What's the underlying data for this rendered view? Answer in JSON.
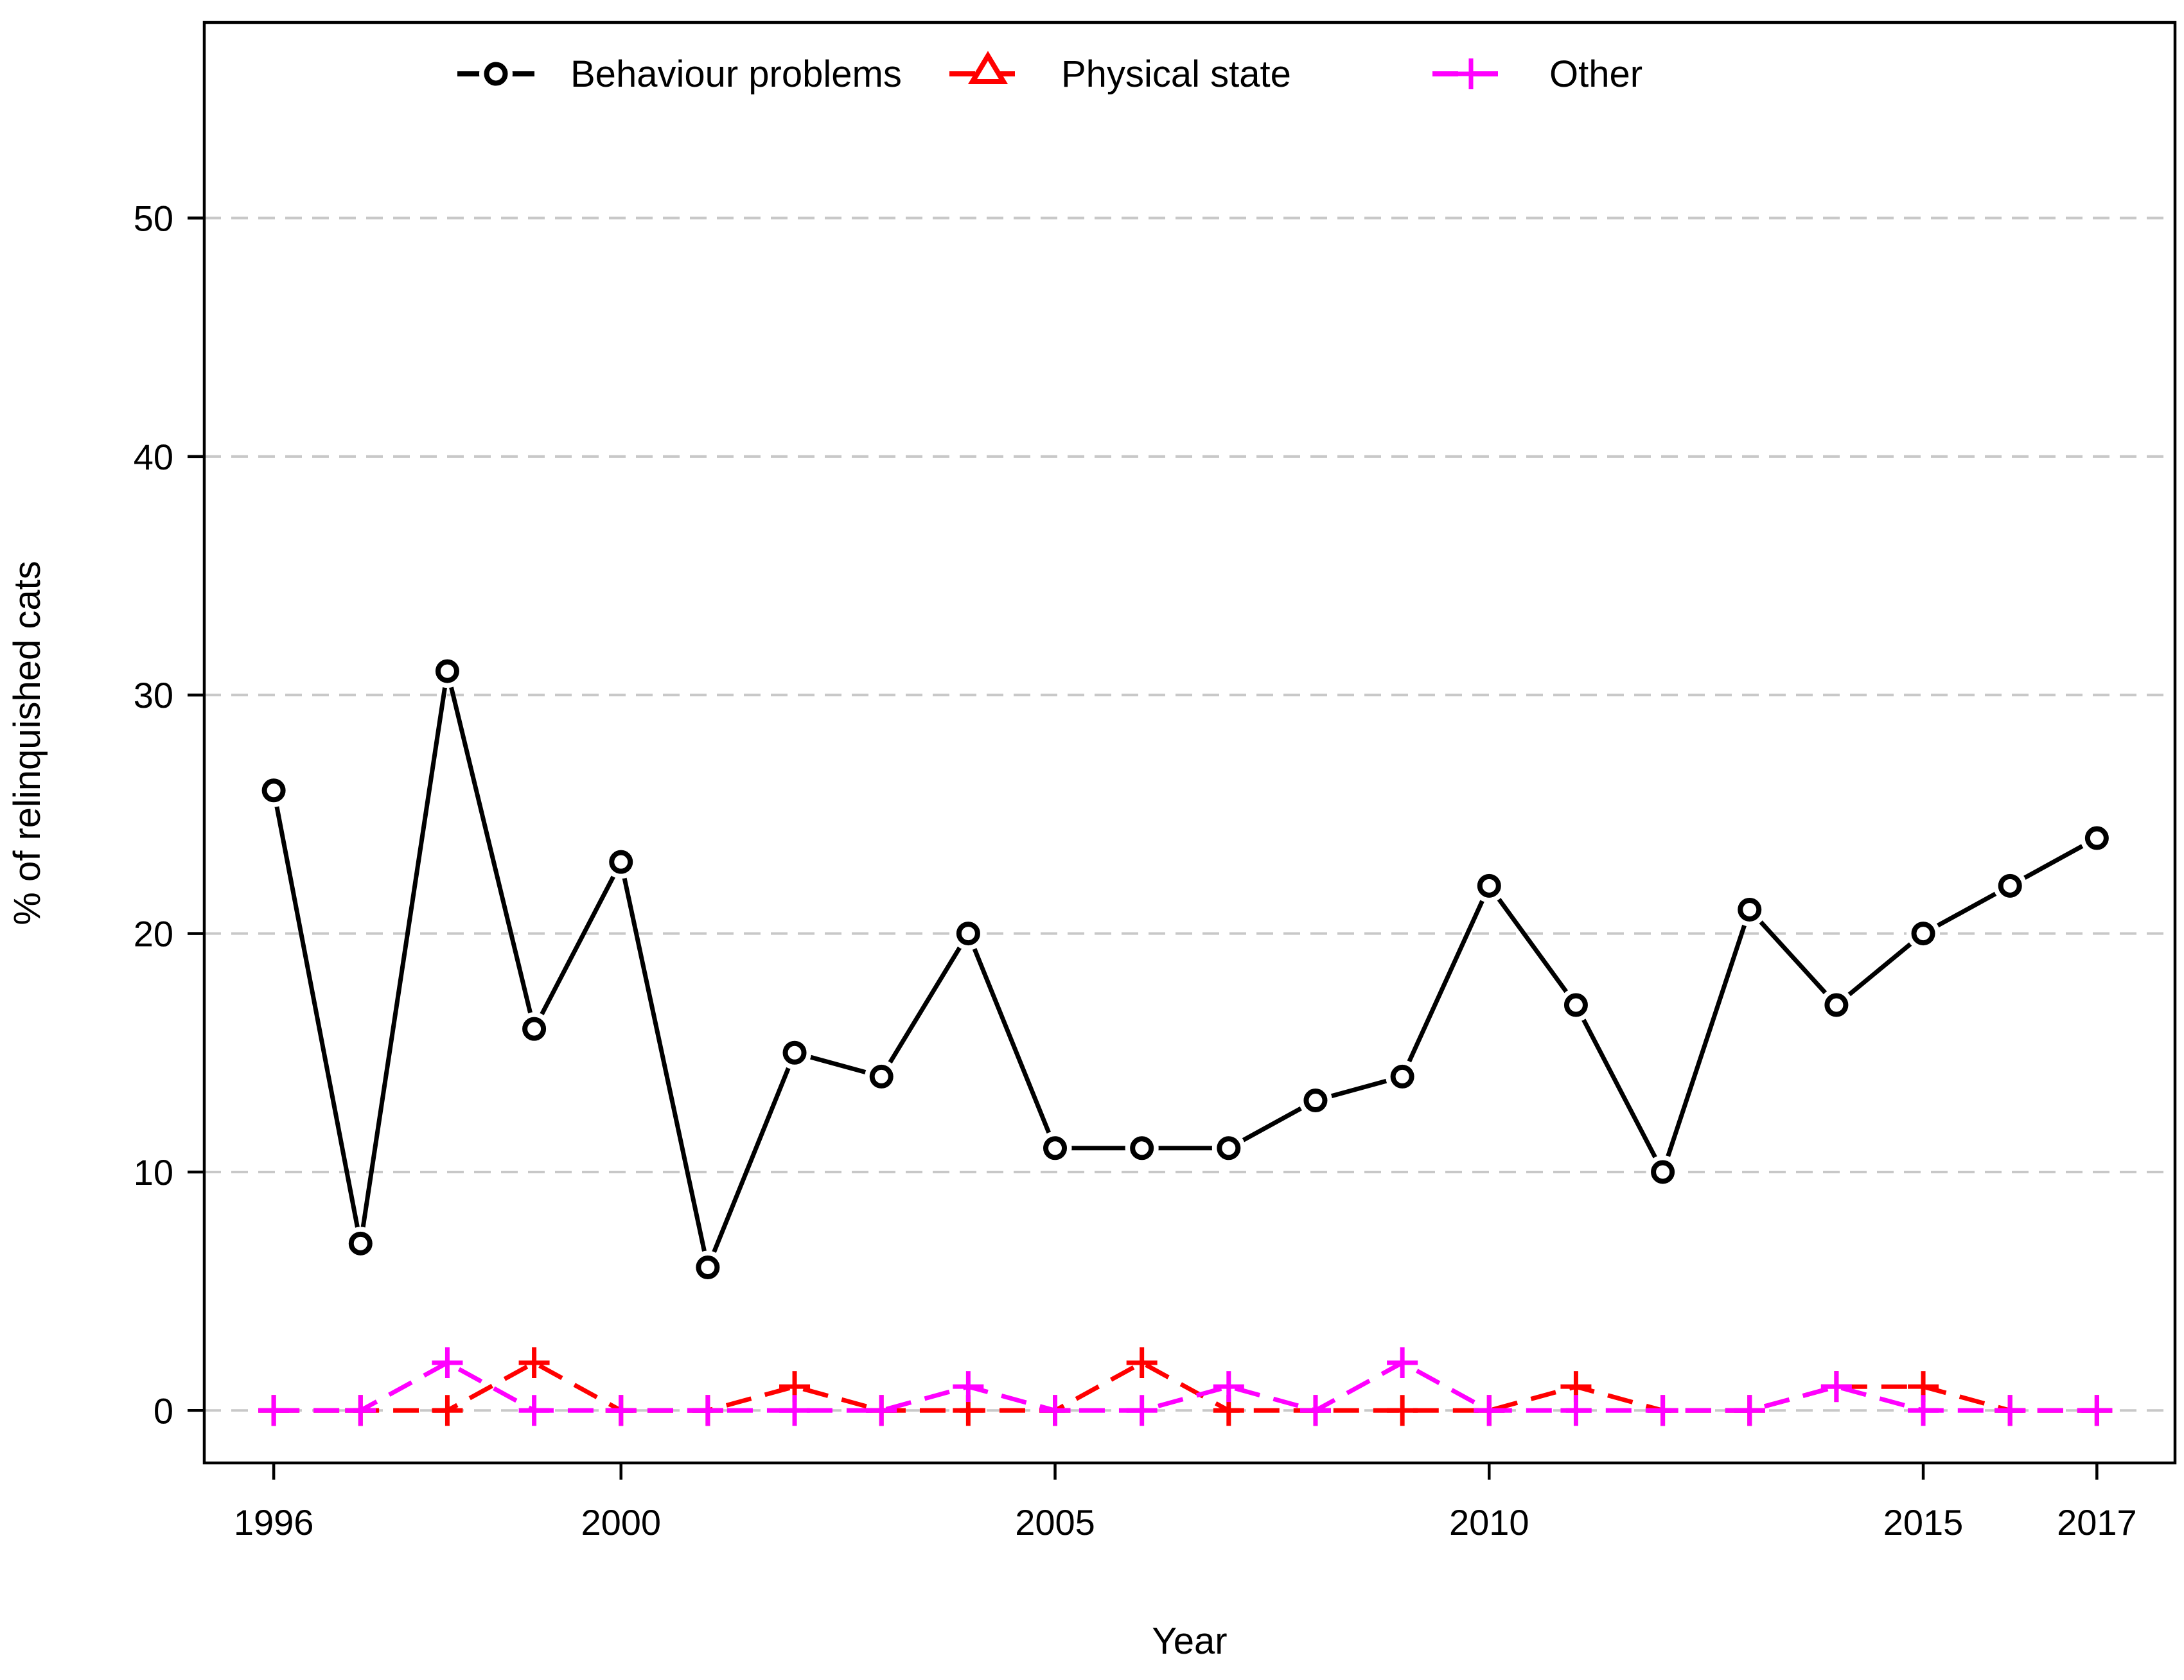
{
  "chart_data": {
    "type": "line",
    "title": "",
    "xlabel": "Year",
    "ylabel": "% of relinquished cats",
    "x": [
      1996,
      1997,
      1998,
      1999,
      2000,
      2001,
      2002,
      2003,
      2004,
      2005,
      2006,
      2007,
      2008,
      2009,
      2010,
      2011,
      2012,
      2013,
      2014,
      2015,
      2016,
      2017
    ],
    "xticks": [
      1996,
      2000,
      2005,
      2010,
      2015,
      2017
    ],
    "xlim": [
      1995.2,
      2017.9
    ],
    "yticks": [
      0,
      10,
      20,
      30,
      40,
      50
    ],
    "ylim": [
      -2.2,
      58.2
    ],
    "grid": true,
    "legend_position": "top",
    "series": [
      {
        "name": "Behaviour problems",
        "color": "#000000",
        "marker": "circle",
        "line": "solid",
        "values": [
          26,
          7,
          31,
          16,
          23,
          6,
          15,
          14,
          20,
          11,
          11,
          11,
          13,
          14,
          22,
          17,
          10,
          21,
          17,
          20,
          22,
          24
        ]
      },
      {
        "name": "Physical state",
        "color": "#ff0000",
        "marker": "plus",
        "legend_marker": "triangle",
        "line": "dashed",
        "values": [
          0,
          0,
          0,
          2,
          0,
          0,
          1,
          0,
          0,
          0,
          2,
          0,
          0,
          0,
          0,
          1,
          0,
          0,
          1,
          1,
          0,
          0
        ]
      },
      {
        "name": "Other",
        "color": "#ff00ff",
        "marker": "plus",
        "line": "dashed",
        "values": [
          0,
          0,
          2,
          0,
          0,
          0,
          0,
          0,
          1,
          0,
          0,
          1,
          0,
          2,
          0,
          0,
          0,
          0,
          1,
          0,
          0,
          0
        ]
      }
    ]
  }
}
